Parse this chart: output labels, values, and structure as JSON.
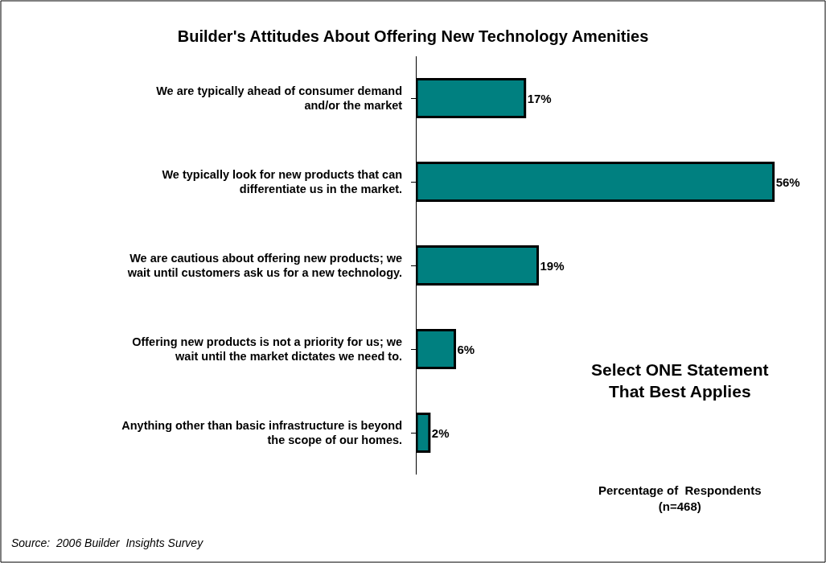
{
  "chart_data": {
    "type": "bar",
    "orientation": "horizontal",
    "title": "Builder's Attitudes About Offering New Technology Amenities",
    "categories": [
      "We are typically ahead of consumer demand\nand/or the market",
      "We typically look for new products that can\ndifferentiate us in the market.",
      "We are cautious about offering new products; we\nwait until customers ask us for a new technology.",
      "Offering new products is not a priority for us; we\nwait until the market dictates we need to.",
      "Anything other than basic infrastructure is beyond\nthe scope of our homes."
    ],
    "values": [
      17,
      56,
      19,
      6,
      2
    ],
    "value_labels": [
      "17%",
      "56%",
      "19%",
      "6%",
      "2%"
    ],
    "color": "#008080",
    "tick_labels": "y",
    "legend": false,
    "annotations": [
      "Select ONE Statement\nThat Best Applies",
      "Percentage of  Respondents\n(n=468)",
      "Source:  2006 Builder  Insights Survey"
    ]
  }
}
